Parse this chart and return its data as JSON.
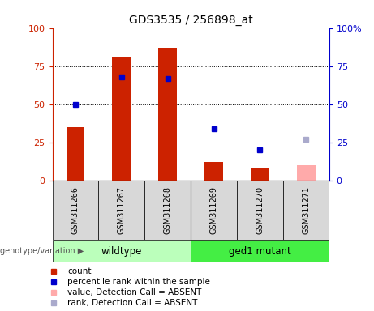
{
  "title": "GDS3535 / 256898_at",
  "samples": [
    "GSM311266",
    "GSM311267",
    "GSM311268",
    "GSM311269",
    "GSM311270",
    "GSM311271"
  ],
  "count_values": [
    35,
    81,
    87,
    12,
    8,
    null
  ],
  "count_absent": [
    null,
    null,
    null,
    null,
    null,
    10
  ],
  "rank_values": [
    50,
    68,
    67,
    34,
    20,
    null
  ],
  "rank_absent": [
    null,
    null,
    null,
    null,
    null,
    27
  ],
  "bar_color_present": "#cc2200",
  "bar_color_absent": "#ffaaaa",
  "dot_color_present": "#0000cc",
  "dot_color_absent": "#aaaacc",
  "wildtype_color": "#bbffbb",
  "mutant_color": "#44ee44",
  "ylim": [
    0,
    100
  ],
  "legend_labels": [
    "count",
    "percentile rank within the sample",
    "value, Detection Call = ABSENT",
    "rank, Detection Call = ABSENT"
  ],
  "bar_width": 0.4,
  "group_split": 3,
  "wildtype_label": "wildtype",
  "mutant_label": "ged1 mutant",
  "group_row_label": "genotype/variation"
}
